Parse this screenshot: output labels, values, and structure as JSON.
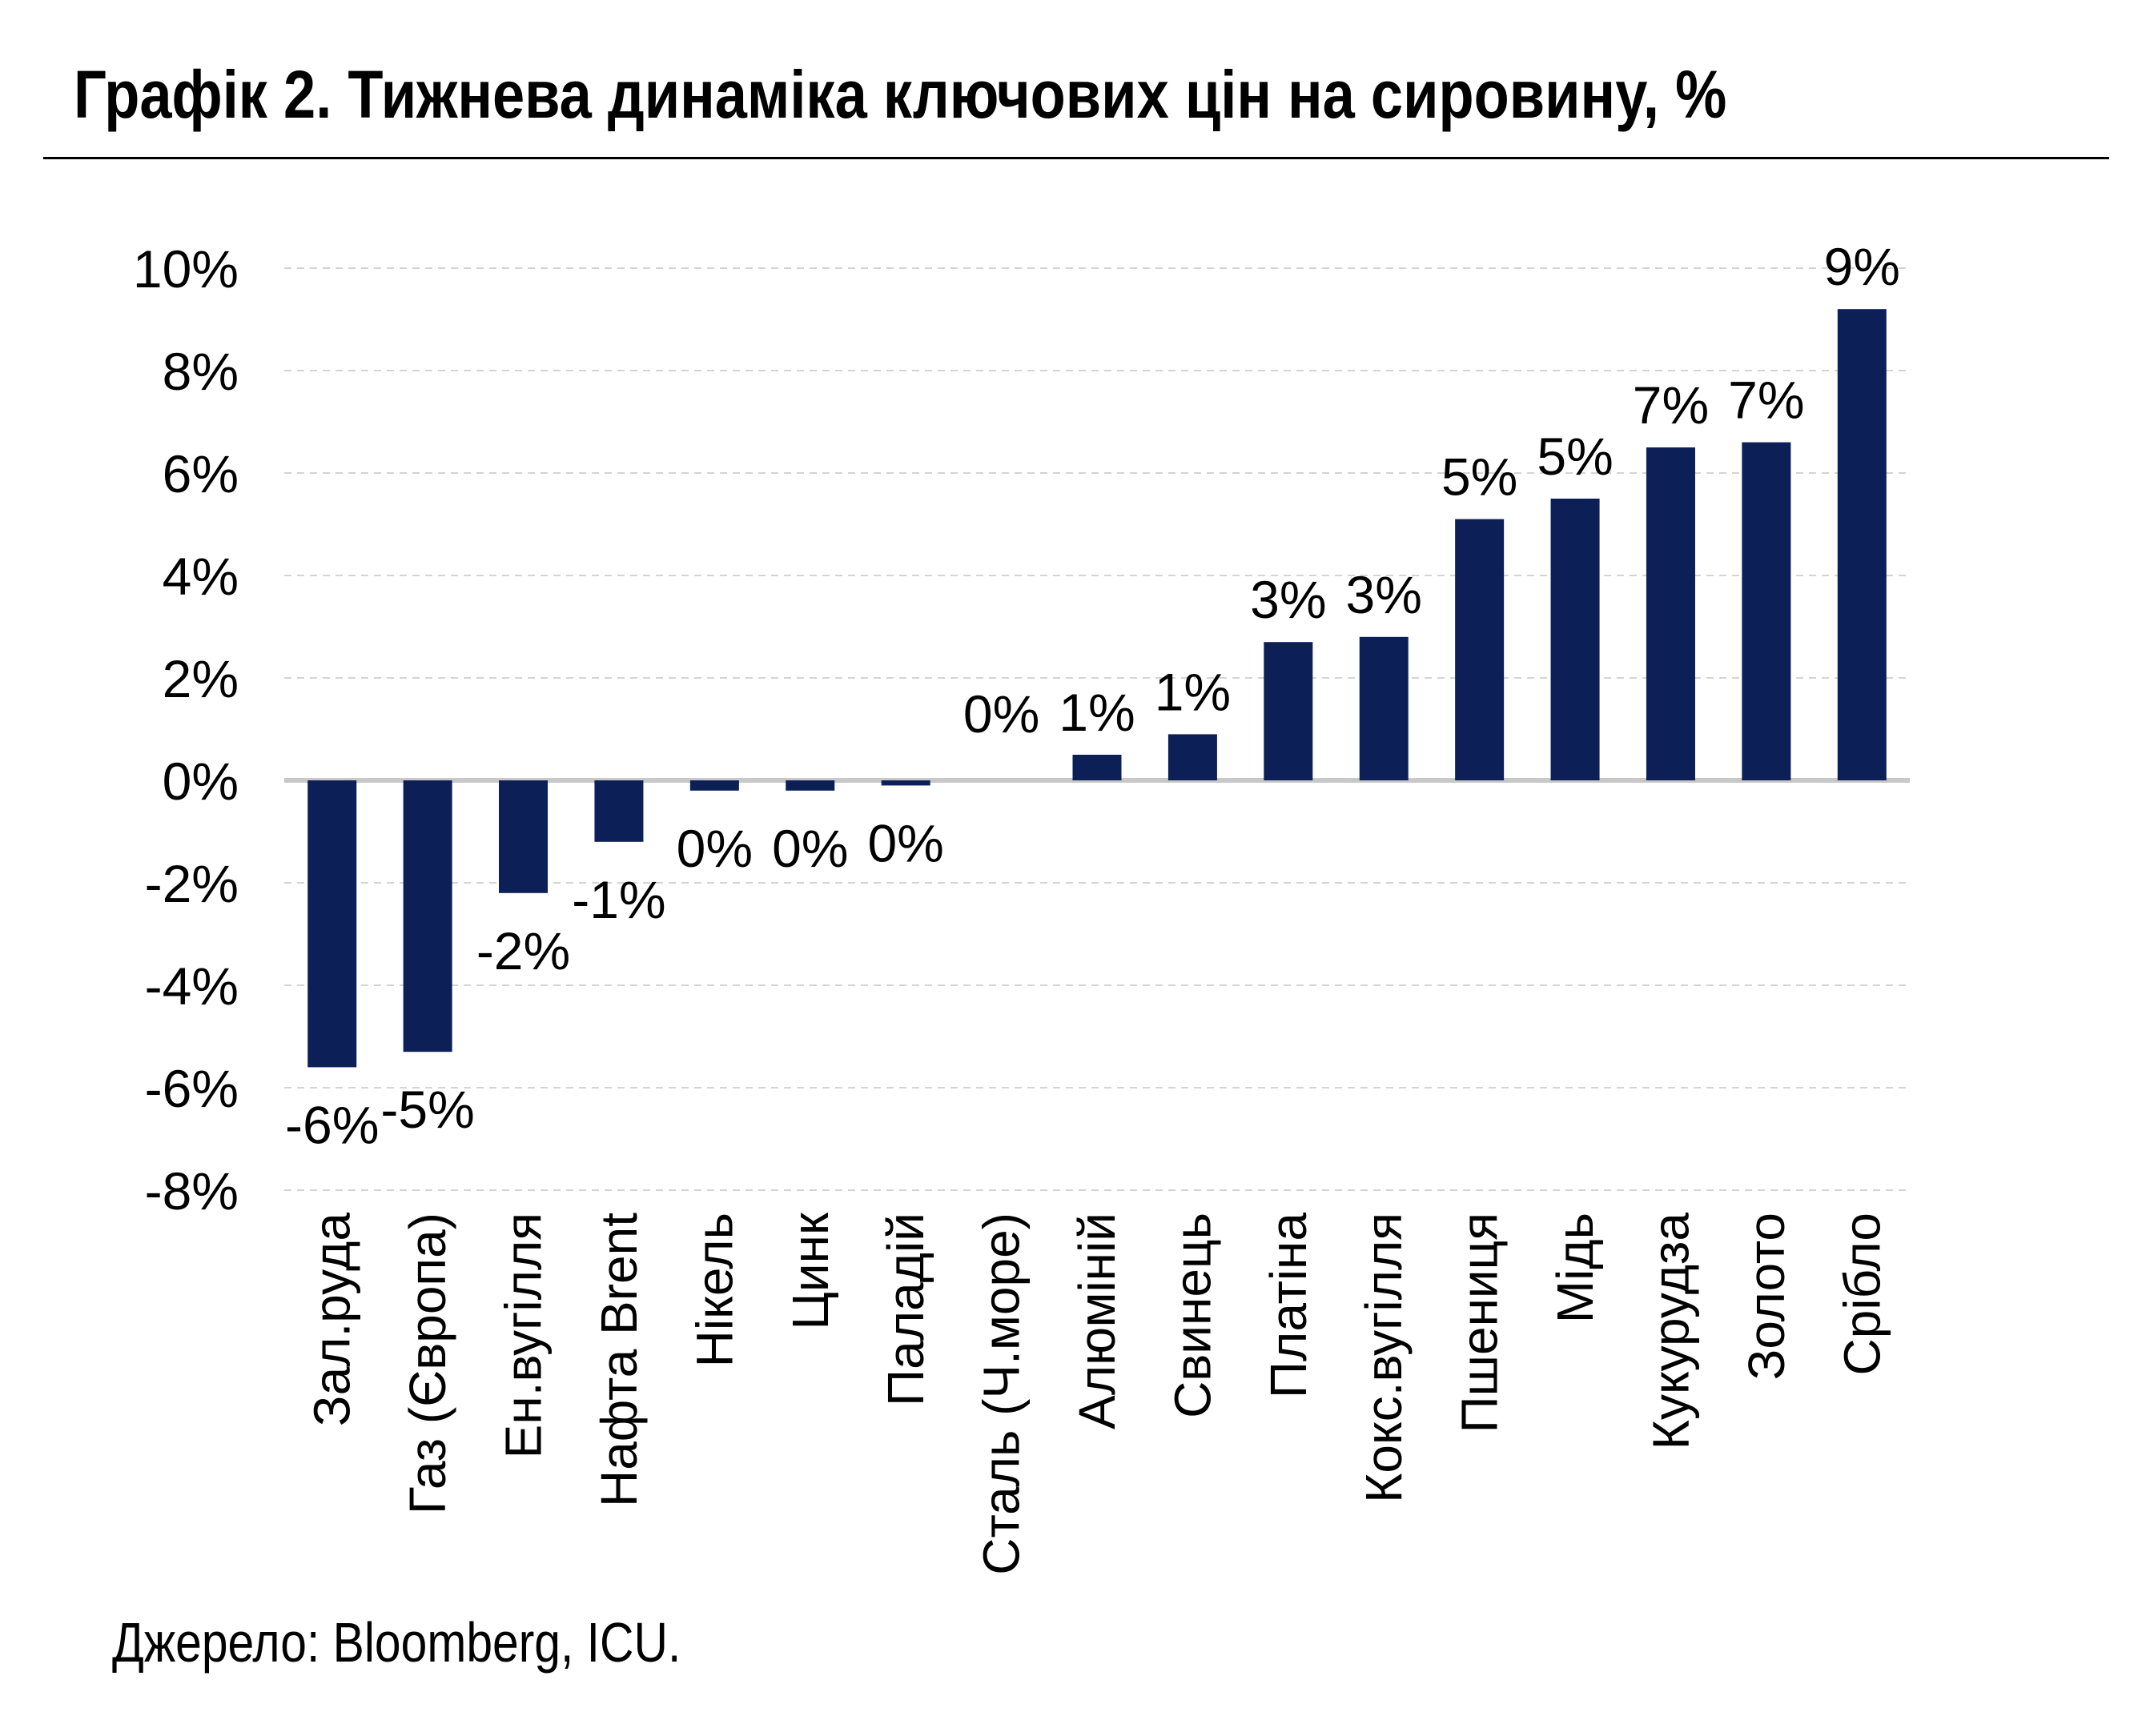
{
  "title": "Графік 2. Тижнева динаміка ключових цін на сировину, %",
  "source": "Джерело: Bloomberg, ICU.",
  "colors": {
    "bar": "#0c1f56",
    "grid": "#d4d4d4",
    "zero_line": "#c8c8c8",
    "text": "#000000"
  },
  "chart_data": {
    "type": "bar",
    "title": "Графік 2. Тижнева динаміка ключових цін на сировину, %",
    "xlabel": "",
    "ylabel": "",
    "ylim": [
      -8,
      10
    ],
    "yticks": [
      10,
      8,
      6,
      4,
      2,
      0,
      -2,
      -4,
      -6,
      -8
    ],
    "ytick_labels": [
      "10%",
      "8%",
      "6%",
      "4%",
      "2%",
      "0%",
      "-2%",
      "-4%",
      "-6%",
      "-8%"
    ],
    "grid": true,
    "legend": "none",
    "categories": [
      "Зал.руда",
      "Газ (Європа)",
      "Ен.вугілля",
      "Нафта Brent",
      "Нікель",
      "Цинк",
      "Паладій",
      "Сталь (Ч.море)",
      "Алюміній",
      "Свинець",
      "Платіна",
      "Кокс.вугілля",
      "Пшениця",
      "Мідь",
      "Кукурудза",
      "Золото",
      "Срібло"
    ],
    "values": [
      -5.6,
      -5.3,
      -2.2,
      -1.2,
      -0.2,
      -0.2,
      -0.1,
      0.0,
      0.5,
      0.9,
      2.7,
      2.8,
      5.1,
      5.5,
      6.5,
      6.6,
      9.2
    ],
    "data_labels": [
      "-6%",
      "-5%",
      "-2%",
      "-1%",
      "0%",
      "0%",
      "0%",
      "0%",
      "1%",
      "1%",
      "3%",
      "3%",
      "5%",
      "5%",
      "7%",
      "7%",
      "9%"
    ]
  }
}
